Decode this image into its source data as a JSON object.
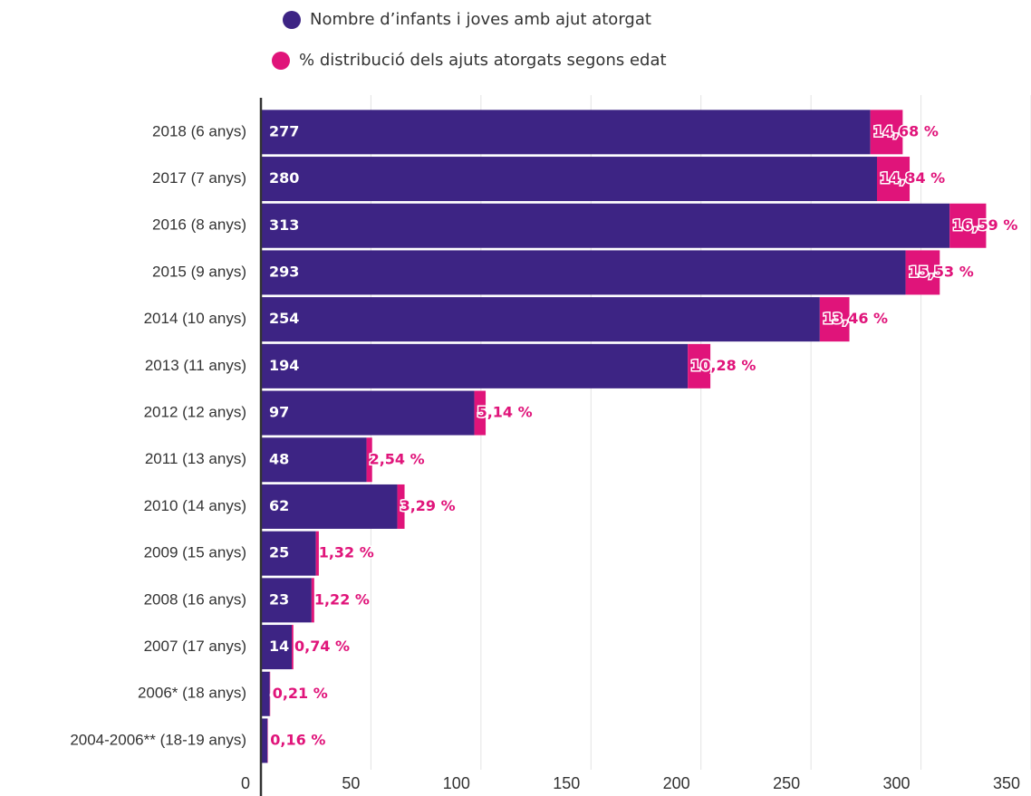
{
  "chart_data": {
    "type": "bar",
    "orientation": "horizontal",
    "stacked": true,
    "categories": [
      "2018 (6 anys)",
      "2017 (7 anys)",
      "2016 (8 anys)",
      "2015 (9 anys)",
      "2014 (10 anys)",
      "2013 (11 anys)",
      "2012 (12 anys)",
      "2011 (13 anys)",
      "2010 (14 anys)",
      "2009 (15 anys)",
      "2008 (16 anys)",
      "2007 (17 anys)",
      "2006* (18 anys)",
      "2004-2006** (18-19 anys)"
    ],
    "series": [
      {
        "name": "Nombre d’infants i joves amb ajut atorgat",
        "color": "#3d2484",
        "values": [
          277,
          280,
          313,
          293,
          254,
          194,
          97,
          48,
          62,
          25,
          23,
          14,
          4,
          3
        ]
      },
      {
        "name": "% distribució dels ajuts atorgats segons edat",
        "color": "#e0147a",
        "values": [
          14.68,
          14.84,
          16.59,
          15.53,
          13.46,
          10.28,
          5.14,
          2.54,
          3.29,
          1.32,
          1.22,
          0.74,
          0.21,
          0.16
        ],
        "value_labels": [
          "14,68 %",
          "14,84 %",
          "16,59 %",
          "15,53 %",
          "13,46 %",
          "10,28 %",
          "5,14 %",
          "2,54 %",
          "3,29 %",
          "1,32 %",
          "1,22 %",
          "0,74 %",
          "0,21 %",
          "0,16 %"
        ]
      }
    ],
    "xlim": [
      0,
      350
    ],
    "xticks": [
      0,
      50,
      100,
      150,
      200,
      250,
      300,
      350
    ],
    "grid": true
  }
}
